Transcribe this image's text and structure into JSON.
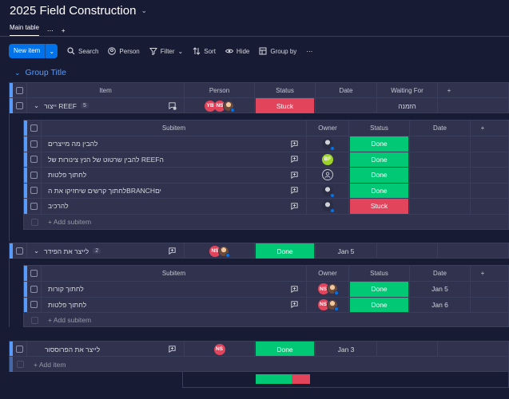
{
  "board": {
    "title": "2025 Field Construction"
  },
  "tabs": {
    "main": "Main table",
    "more": "⋯",
    "add": "+"
  },
  "toolbar": {
    "new_item": "New item",
    "search": "Search",
    "person": "Person",
    "filter": "Filter",
    "sort": "Sort",
    "hide": "Hide",
    "group_by": "Group by",
    "more": "⋯"
  },
  "group": {
    "title": "Group Title",
    "color": "#579bfc",
    "columns": {
      "item": "Item",
      "person": "Person",
      "status": "Status",
      "date": "Date",
      "waiting": "Waiting For",
      "add": "+"
    },
    "add_item": "+ Add item",
    "items": [
      {
        "name": "ייצור REEF",
        "count": "5",
        "people": [
          "YB",
          "NS"
        ],
        "status": "Stuck",
        "date": "",
        "waiting": "הזמנה",
        "subitem_columns": {
          "subitem": "Subitem",
          "owner": "Owner",
          "status": "Status",
          "date": "Date",
          "add": "+"
        },
        "add_subitem": "+ Add subitem",
        "subitems": [
          {
            "name": "להבין מה מייצרים",
            "owner": "dark",
            "status": "Done",
            "date": ""
          },
          {
            "name": "להבין שרטוט של הנץ צינורות של REEFה",
            "owner": "BF",
            "status": "Done",
            "date": ""
          },
          {
            "name": "לחתוך פלטות",
            "owner": "empty",
            "status": "Done",
            "date": ""
          },
          {
            "name": "לחתוך קרשים שיחזיקו את הBRANCHים",
            "owner": "dark",
            "status": "Done",
            "date": ""
          },
          {
            "name": "להרכיב",
            "owner": "dark",
            "status": "Stuck",
            "date": ""
          }
        ]
      },
      {
        "name": "לייצר את הפידר",
        "count": "2",
        "people": [
          "NS"
        ],
        "status": "Done",
        "date": "Jan 5",
        "waiting": "",
        "subitem_columns": {
          "subitem": "Subitem",
          "owner": "Owner",
          "status": "Status",
          "date": "Date",
          "add": "+"
        },
        "add_subitem": "+ Add subitem",
        "subitems": [
          {
            "name": "לחתוך קורות",
            "owner": "NS",
            "status": "Done",
            "date": "Jan 5"
          },
          {
            "name": "לחתוך פלטות",
            "owner": "NS",
            "status": "Done",
            "date": "Jan 6"
          }
        ]
      },
      {
        "name": "לייצר את הפרוססור",
        "count": "",
        "people": [
          "NS"
        ],
        "status": "Done",
        "date": "Jan 3",
        "waiting": ""
      }
    ]
  },
  "colors": {
    "done": "#00c875",
    "stuck": "#e2445c",
    "accent": "#0073ea",
    "bg": "#181b34"
  }
}
